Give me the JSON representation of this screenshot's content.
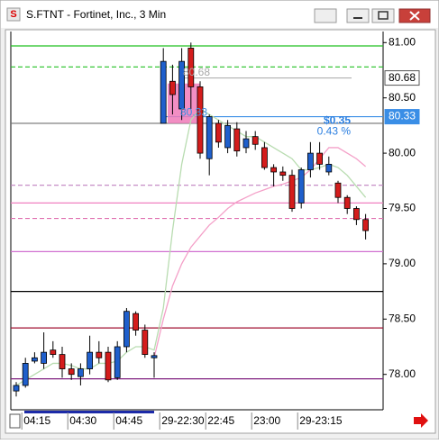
{
  "chart_data": {
    "type": "candlestick",
    "title": "S.FTNT - Fortinet, Inc., 3 Min",
    "categories": [
      null,
      "04:15",
      null,
      null,
      null,
      null,
      "04:30",
      null,
      null,
      null,
      null,
      "04:45",
      null,
      null,
      null,
      null,
      "29-22:30",
      null,
      null,
      null,
      null,
      "22:45",
      null,
      null,
      null,
      null,
      "23:00",
      null,
      null,
      null,
      null,
      "29-23:15",
      null,
      null,
      null,
      null,
      null,
      null,
      null
    ],
    "open": [
      77.85,
      77.9,
      78.12,
      78.1,
      78.22,
      78.18,
      78.05,
      77.98,
      78.05,
      78.2,
      78.2,
      77.97,
      78.25,
      78.55,
      78.4,
      78.15,
      80.27,
      80.65,
      80.4,
      80.95,
      80.6,
      79.95,
      80.27,
      80.05,
      80.22,
      80.05,
      80.15,
      80.05,
      79.87,
      79.83,
      79.8,
      79.55,
      79.85,
      80.0,
      79.83,
      79.73,
      79.6,
      79.5,
      79.4
    ],
    "high": [
      77.93,
      78.15,
      78.2,
      78.38,
      78.3,
      78.25,
      78.1,
      78.1,
      78.35,
      78.3,
      78.25,
      78.3,
      78.6,
      78.57,
      78.45,
      78.2,
      80.95,
      80.8,
      80.95,
      81.0,
      80.65,
      80.35,
      80.3,
      80.3,
      80.28,
      80.2,
      80.2,
      80.1,
      79.9,
      79.88,
      79.85,
      79.87,
      80.1,
      80.1,
      79.97,
      79.75,
      79.62,
      79.52,
      79.45
    ],
    "low": [
      77.8,
      77.88,
      78.1,
      78.05,
      78.15,
      77.97,
      77.95,
      77.9,
      78.0,
      78.1,
      77.93,
      77.95,
      78.2,
      78.35,
      78.15,
      77.97,
      80.27,
      80.35,
      80.3,
      80.4,
      79.95,
      79.8,
      80.05,
      80.0,
      79.97,
      80.0,
      80.03,
      79.85,
      79.7,
      79.75,
      79.47,
      79.5,
      79.78,
      79.85,
      79.8,
      79.55,
      79.45,
      79.35,
      79.22
    ],
    "close": [
      77.9,
      78.1,
      78.15,
      78.2,
      78.18,
      78.05,
      78.0,
      78.05,
      78.2,
      78.15,
      77.95,
      78.25,
      78.57,
      78.4,
      78.18,
      78.17,
      80.83,
      80.53,
      80.83,
      80.6,
      80.0,
      80.33,
      80.1,
      80.25,
      80.02,
      80.13,
      80.08,
      79.87,
      79.83,
      79.8,
      79.5,
      79.85,
      80.0,
      79.9,
      79.9,
      79.6,
      79.5,
      79.4,
      79.3
    ],
    "up_color": "#1f5fcc",
    "down_color": "#d41c1c",
    "lines": [
      {
        "color": "#b8dcb0",
        "values": [
          77.9,
          77.95,
          78.0,
          78.05,
          78.1,
          78.1,
          78.08,
          78.05,
          78.05,
          78.1,
          78.1,
          78.12,
          78.2,
          78.25,
          78.25,
          78.22,
          78.6,
          79.3,
          79.9,
          80.3,
          80.4,
          80.35,
          80.3,
          80.25,
          80.2,
          80.15,
          80.15,
          80.1,
          80.05,
          80.0,
          79.95,
          79.85,
          79.85,
          79.87,
          79.9,
          79.87,
          79.8,
          79.7,
          79.6
        ]
      },
      {
        "color": "#f4a0c8",
        "values": [
          null,
          null,
          null,
          null,
          null,
          null,
          null,
          null,
          null,
          null,
          null,
          null,
          null,
          null,
          null,
          78.15,
          78.5,
          78.8,
          79.0,
          79.15,
          79.25,
          79.35,
          79.42,
          79.5,
          79.56,
          79.6,
          79.64,
          79.67,
          79.7,
          79.72,
          79.75,
          79.78,
          79.85,
          79.95,
          80.05,
          80.05,
          80.0,
          79.95,
          79.88
        ]
      }
    ],
    "levels": [
      {
        "value": 80.97,
        "color": "#22c022"
      },
      {
        "value": 80.78,
        "color": "#22c022",
        "dashed": true
      },
      {
        "value": 80.68,
        "color": "#b0b0b0"
      },
      {
        "value": 80.33,
        "color": "#3a8ee6"
      },
      {
        "value": 80.27,
        "color": "#707070"
      },
      {
        "value": 79.71,
        "color": "#c080c0",
        "dashed": true
      },
      {
        "value": 79.55,
        "color": "#f080c0"
      },
      {
        "value": 79.41,
        "color": "#e070b0",
        "dashed": true
      },
      {
        "value": 79.11,
        "color": "#d070d0"
      },
      {
        "value": 78.75,
        "color": "#000000"
      },
      {
        "value": 78.42,
        "color": "#a01030"
      },
      {
        "value": 77.96,
        "color": "#802080"
      }
    ],
    "markers": [
      80.68,
      80.33
    ],
    "annotations": [
      "80.68",
      "80.33",
      "$0.35",
      "0.43 %"
    ],
    "ylim": [
      77.68,
      81.1
    ],
    "yticks": [
      {
        "value": 78,
        "label": "78.00"
      },
      {
        "value": 78.5,
        "label": "78.50"
      },
      {
        "value": 79,
        "label": "79.00"
      },
      {
        "value": 79.5,
        "label": "79.50"
      },
      {
        "value": 80,
        "label": "80.00"
      },
      {
        "value": 80.5,
        "label": "80.50"
      },
      {
        "value": 81,
        "label": "81.00"
      }
    ]
  }
}
